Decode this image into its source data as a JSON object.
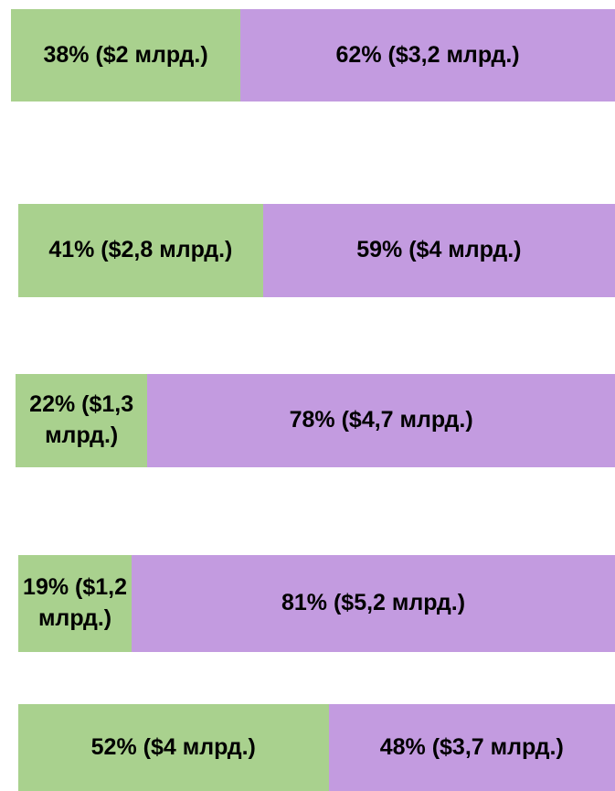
{
  "chart_data": {
    "type": "stacked_bar_100",
    "categories": [
      null,
      null,
      null,
      null,
      null
    ],
    "series": [
      {
        "color": "#a9d18e",
        "values": [
          38,
          41,
          22,
          19,
          52
        ],
        "value_labels": [
          "38% ($2 млрд.)",
          "41% ($2,8 млрд.)",
          "22% ($1,3 млрд.)",
          "19% ($1,2 млрд.)",
          "52% ($4 млрд.)"
        ]
      },
      {
        "color": "#c39be0",
        "values": [
          62,
          59,
          78,
          81,
          48
        ],
        "value_labels": [
          "62% ($3,2 млрд.)",
          "59% ($4 млрд.)",
          "78% ($4,7 млрд.)",
          "81% ($5,2 млрд.)",
          "48% ($3,7 млрд.)"
        ]
      }
    ]
  }
}
